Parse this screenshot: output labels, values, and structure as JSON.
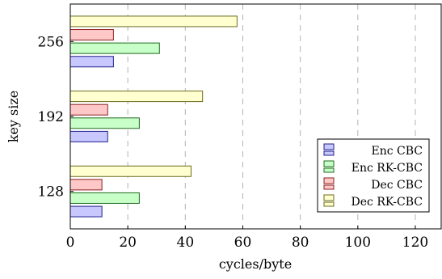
{
  "chart_data": {
    "type": "bar",
    "orientation": "horizontal",
    "categories": [
      "128",
      "192",
      "256"
    ],
    "series": [
      {
        "name": "Enc CBC",
        "values": [
          11,
          13,
          15
        ],
        "fill": "#c8c8ff",
        "stroke": "#1f1f8c"
      },
      {
        "name": "Enc RK-CBC",
        "values": [
          24,
          24,
          31
        ],
        "fill": "#c8ffc8",
        "stroke": "#1f6b1f"
      },
      {
        "name": "Dec CBC",
        "values": [
          11,
          13,
          15
        ],
        "fill": "#ffc8c8",
        "stroke": "#8c1f1f"
      },
      {
        "name": "Dec RK-CBC",
        "values": [
          42,
          46,
          58
        ],
        "fill": "#ffffd0",
        "stroke": "#6b6b1f"
      }
    ],
    "xlabel": "cycles/byte",
    "ylabel": "key size",
    "xlim": [
      0,
      129
    ],
    "xticks": [
      0,
      20,
      40,
      60,
      80,
      100,
      120
    ],
    "grid": "vertical-dashed",
    "legend": "bottom-right"
  }
}
